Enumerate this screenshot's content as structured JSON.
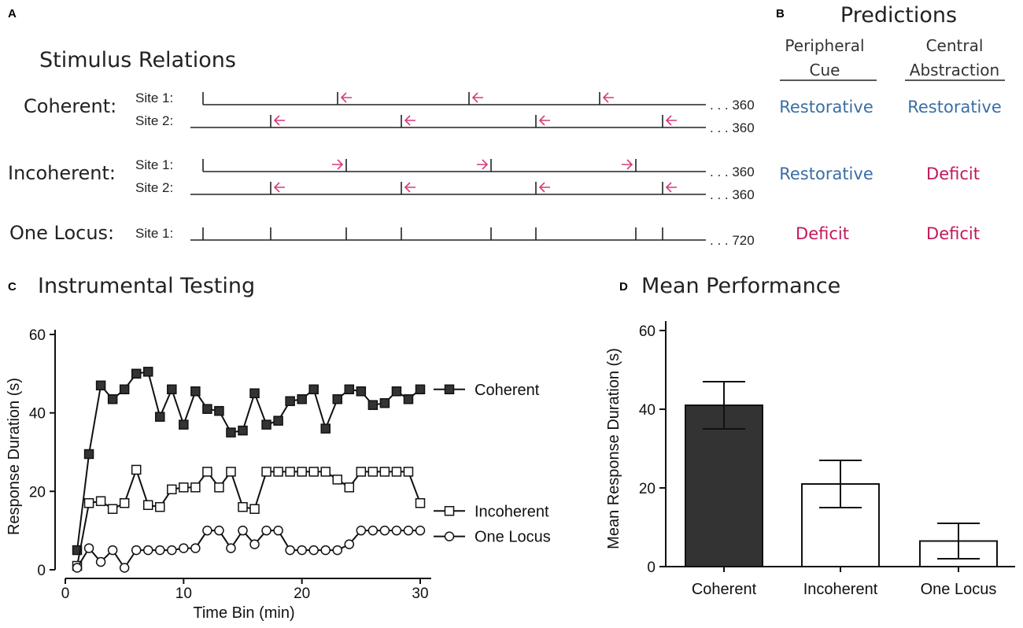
{
  "colors": {
    "restorative": "#3a6ea5",
    "deficit": "#c2185b",
    "arrow": "#d63b7c",
    "ink": "#111111",
    "bar_fill_dark": "#333333"
  },
  "panel_a": {
    "letter": "A",
    "title": "Stimulus Relations",
    "rows": [
      {
        "label": "Coherent:",
        "sites": [
          {
            "name": "Site 1:",
            "end": ". . . 360"
          },
          {
            "name": "Site 2:",
            "end": ". . . 360"
          }
        ]
      },
      {
        "label": "Incoherent:",
        "sites": [
          {
            "name": "Site 1:",
            "end": ". . . 360"
          },
          {
            "name": "Site 2:",
            "end": ". . . 360"
          }
        ]
      },
      {
        "label": "One Locus:",
        "sites": [
          {
            "name": "Site 1:",
            "end": ". . . 720"
          }
        ]
      }
    ]
  },
  "panel_b": {
    "letter": "B",
    "title": "Predictions",
    "col1": {
      "line1": "Peripheral",
      "line2": "Cue"
    },
    "col2": {
      "line1": "Central",
      "line2": "Abstraction"
    },
    "rows": [
      {
        "peripheral": "Restorative",
        "central": "Restorative",
        "peripheral_kind": "restorative",
        "central_kind": "restorative"
      },
      {
        "peripheral": "Restorative",
        "central": "Deficit",
        "peripheral_kind": "restorative",
        "central_kind": "deficit"
      },
      {
        "peripheral": "Deficit",
        "central": "Deficit",
        "peripheral_kind": "deficit",
        "central_kind": "deficit"
      }
    ]
  },
  "chart_data": [
    {
      "panel": "C",
      "type": "line",
      "title": "Instrumental Testing",
      "xlabel": "Time Bin (min)",
      "ylabel": "Response Duration (s)",
      "xlim": [
        0,
        30
      ],
      "ylim": [
        0,
        60
      ],
      "xticks": [
        0,
        10,
        20,
        30
      ],
      "yticks": [
        0,
        20,
        40,
        60
      ],
      "x": [
        1,
        2,
        3,
        4,
        5,
        6,
        7,
        8,
        9,
        10,
        11,
        12,
        13,
        14,
        15,
        16,
        17,
        18,
        19,
        20,
        21,
        22,
        23,
        24,
        25,
        26,
        27,
        28,
        29,
        30
      ],
      "series": [
        {
          "name": "Coherent",
          "marker": "filled-square",
          "values": [
            5,
            29.5,
            47,
            43.5,
            46,
            50,
            50.5,
            39,
            46,
            37,
            45.5,
            41,
            40.5,
            35,
            35.5,
            45,
            37,
            38,
            43,
            43.5,
            46,
            36,
            43.5,
            46,
            45.5,
            42,
            42.5,
            45.5,
            43.5,
            46
          ]
        },
        {
          "name": "Incoherent",
          "marker": "open-square",
          "values": [
            1,
            17,
            17.5,
            15.5,
            17,
            25.5,
            16.5,
            16,
            20.5,
            21,
            21,
            25,
            21,
            25,
            16,
            15.5,
            25,
            25,
            25,
            25,
            25,
            25,
            23,
            21,
            25,
            25,
            25,
            25,
            25,
            17
          ]
        },
        {
          "name": "One Locus",
          "marker": "open-circle",
          "values": [
            0.5,
            5.5,
            2,
            5,
            0.5,
            5,
            5,
            5,
            5,
            5.5,
            5.5,
            10,
            10,
            5.5,
            10,
            6.5,
            10,
            10,
            5,
            5,
            5,
            5,
            5,
            6.5,
            10,
            10,
            10,
            10,
            10,
            10
          ]
        }
      ]
    },
    {
      "panel": "D",
      "type": "bar",
      "title": "Mean Performance",
      "xlabel": "",
      "ylabel": "Mean Response Duration (s)",
      "ylim": [
        0,
        60
      ],
      "yticks": [
        0,
        20,
        40,
        60
      ],
      "categories": [
        "Coherent",
        "Incoherent",
        "One Locus"
      ],
      "values": [
        41,
        21,
        6.5
      ],
      "error": [
        6,
        6,
        4.5
      ]
    }
  ]
}
